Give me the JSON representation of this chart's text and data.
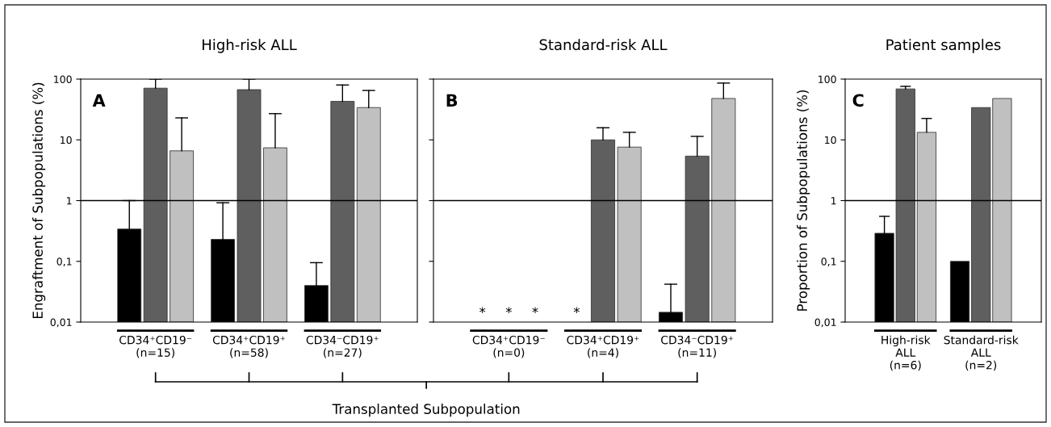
{
  "chart_data": [
    {
      "type": "bar",
      "title": "High-risk ALL",
      "ylabel": "Engraftment of Subpopulations (%)",
      "annotations": [
        "A"
      ],
      "log": "y",
      "ylim": [
        0.01,
        100
      ],
      "yticks": [
        {
          "value": 0.01,
          "label": "0,01"
        },
        {
          "value": 0.1,
          "label": "0,1"
        },
        1,
        10,
        100
      ],
      "categories": [
        "CD34⁺CD19⁻\n(n=15)",
        "CD34⁺CD19⁺\n(n=58)",
        "CD34⁻CD19⁺\n(n=27)"
      ],
      "ref_lines": [
        {
          "axis": "y",
          "value": 1,
          "color": "#000000"
        }
      ],
      "series": [
        {
          "color": "#000000",
          "values": [
            0.34,
            0.23,
            0.04
          ],
          "errors": [
            [
              0.34,
              1.0
            ],
            [
              0.23,
              0.92
            ],
            [
              0.04,
              0.095
            ]
          ]
        },
        {
          "color": "#5f5f5f",
          "values": [
            71,
            67,
            43
          ],
          "errors": [
            [
              71,
              100
            ],
            [
              67,
              100
            ],
            [
              43,
              80
            ]
          ]
        },
        {
          "color": "#c0c0c0",
          "values": [
            6.6,
            7.4,
            34
          ],
          "errors": [
            [
              6.6,
              23
            ],
            [
              7.4,
              27
            ],
            [
              34,
              65
            ]
          ]
        }
      ]
    },
    {
      "type": "bar",
      "title": "Standard-risk ALL",
      "xlabel": "Transplanted Subpopulation",
      "annotations": [
        "B"
      ],
      "log": "y",
      "ylim": [
        0.01,
        100
      ],
      "yticks": [
        {
          "value": 0.01,
          "label": null
        },
        {
          "value": 0.1,
          "label": null
        },
        {
          "value": 1,
          "label": null
        },
        {
          "value": 10,
          "label": null
        },
        {
          "value": 100,
          "label": null
        }
      ],
      "tick_labels": "x",
      "categories": [
        "CD34⁺CD19⁻\n(n=0)",
        "CD34⁺CD19⁺\n(n=4)",
        "CD34⁻CD19⁺\n(n=11)"
      ],
      "ref_lines": [
        {
          "axis": "y",
          "value": 1,
          "color": "#000000"
        }
      ],
      "series": [
        {
          "color": "#000000",
          "values": [
            null,
            null,
            0.0145
          ],
          "errors": [
            null,
            null,
            [
              0.0145,
              0.042
            ]
          ],
          "value_labels": [
            "*",
            "*",
            null
          ]
        },
        {
          "color": "#5f5f5f",
          "values": [
            null,
            10,
            5.4
          ],
          "errors": [
            null,
            [
              10,
              15.8
            ],
            [
              5.4,
              11.4
            ]
          ],
          "value_labels": [
            "*",
            null,
            null
          ]
        },
        {
          "color": "#c0c0c0",
          "values": [
            null,
            7.6,
            48
          ],
          "errors": [
            null,
            [
              7.6,
              13.3
            ],
            [
              48,
              86
            ]
          ],
          "value_labels": [
            "*",
            null,
            null
          ]
        }
      ]
    },
    {
      "type": "bar",
      "title": "Patient samples",
      "ylabel": "Proportion of Subpopulations (%)",
      "annotations": [
        "C"
      ],
      "log": "y",
      "ylim": [
        0.01,
        100
      ],
      "yticks": [
        {
          "value": 0.01,
          "label": "0,01"
        },
        {
          "value": 0.1,
          "label": "0,1"
        },
        1,
        10,
        100
      ],
      "categories": [
        "High-risk\nALL\n(n=6)",
        "Standard-risk\nALL\n(n=2)"
      ],
      "ref_lines": [
        {
          "axis": "y",
          "value": 1,
          "color": "#000000"
        }
      ],
      "series": [
        {
          "color": "#000000",
          "values": [
            0.29,
            0.1
          ],
          "errors": [
            [
              0.29,
              0.55
            ],
            null
          ]
        },
        {
          "color": "#5f5f5f",
          "values": [
            69,
            34
          ],
          "errors": [
            [
              69,
              76
            ],
            null
          ]
        },
        {
          "color": "#c0c0c0",
          "values": [
            13.3,
            48
          ],
          "errors": [
            [
              13.3,
              22.5
            ],
            null
          ]
        }
      ]
    }
  ]
}
